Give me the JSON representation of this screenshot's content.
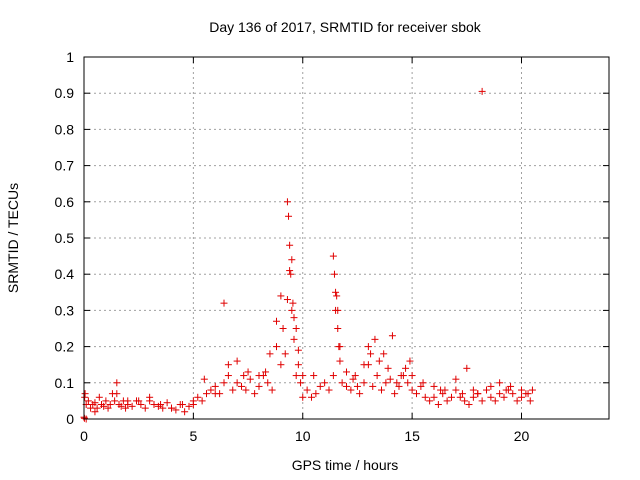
{
  "chart_data": {
    "type": "scatter",
    "title": "Day 136 of 2017, SRMTID for receiver sbok",
    "xlabel": "GPS time / hours",
    "ylabel": "SRMTID / TECUs",
    "xlim": [
      0,
      24
    ],
    "ylim": [
      0,
      1
    ],
    "xticks": [
      0,
      5,
      10,
      15,
      20
    ],
    "yticks": [
      0,
      0.1,
      0.2,
      0.3,
      0.4,
      0.5,
      0.6,
      0.7,
      0.8,
      0.9,
      1
    ],
    "xtick_labels": [
      "0",
      "5",
      "10",
      "15",
      "20"
    ],
    "ytick_labels": [
      "0",
      "0.1",
      "0.2",
      "0.3",
      "0.4",
      "0.5",
      "0.6",
      "0.7",
      "0.8",
      "0.9",
      "1"
    ],
    "grid": true,
    "marker": "plus",
    "color": "#e00000",
    "series": [
      {
        "x": [
          0.0,
          0.05,
          0.1,
          0.2,
          0.3,
          0.4,
          0.5,
          0.6,
          0.7,
          0.8,
          0.9,
          1.0,
          1.1,
          1.2,
          1.3,
          1.4,
          1.5,
          1.6,
          1.7,
          1.8,
          1.9,
          2.0,
          2.2,
          2.4,
          2.6,
          2.8,
          3.0,
          3.2,
          3.4,
          3.6,
          3.8,
          4.0,
          4.2,
          4.4,
          4.6,
          4.8,
          5.0,
          5.2,
          5.4,
          5.6,
          5.8,
          6.0,
          6.2,
          6.4,
          6.6,
          6.8,
          7.0,
          7.2,
          7.4,
          7.6,
          7.8,
          8.0,
          8.2,
          8.4,
          8.6,
          8.8,
          9.0,
          9.1,
          9.2,
          9.3,
          9.4,
          9.5,
          9.6,
          9.7,
          9.8,
          9.9,
          10.0,
          10.2,
          10.4,
          10.6,
          10.8,
          11.0,
          11.2,
          11.4,
          11.5,
          11.6,
          11.7,
          11.8,
          12.0,
          12.2,
          12.4,
          12.6,
          12.8,
          13.0,
          13.2,
          13.4,
          13.6,
          13.8,
          14.0,
          14.2,
          14.4,
          14.6,
          14.8,
          15.0,
          15.2,
          15.4,
          15.6,
          15.8,
          16.0,
          16.2,
          16.4,
          16.6,
          16.8,
          17.0,
          17.2,
          17.4,
          17.6,
          17.8,
          18.0,
          18.2,
          18.4,
          18.6,
          18.8,
          19.0,
          19.2,
          19.4,
          19.6,
          19.8,
          20.0,
          20.2,
          20.4,
          20.5,
          0.1,
          0.5,
          1.5,
          2.0,
          3.0,
          4.0,
          4.5,
          5.0,
          6.0,
          6.4,
          6.6,
          7.0,
          7.5,
          8.0,
          8.5,
          8.8,
          9.0,
          9.3,
          9.35,
          9.4,
          9.45,
          9.5,
          9.55,
          9.6,
          9.7,
          9.8,
          10.0,
          11.4,
          11.45,
          11.5,
          11.55,
          11.6,
          11.65,
          11.7,
          12.0,
          12.5,
          12.8,
          13.0,
          13.1,
          13.3,
          13.5,
          13.7,
          13.9,
          14.1,
          14.5,
          14.7,
          14.9,
          15.0,
          15.5,
          16.0,
          16.5,
          17.0,
          17.5,
          17.8,
          18.0,
          18.2,
          18.6,
          19.0,
          19.5,
          20.0,
          20.3,
          0.02,
          0.03,
          2.5,
          3.5,
          5.5,
          7.3,
          8.3,
          10.5,
          12.3,
          14.3,
          16.3,
          17.3,
          19.3
        ],
        "y": [
          0.005,
          0.07,
          0.04,
          0.05,
          0.03,
          0.04,
          0.045,
          0.03,
          0.06,
          0.04,
          0.035,
          0.05,
          0.03,
          0.04,
          0.07,
          0.05,
          0.1,
          0.04,
          0.035,
          0.05,
          0.03,
          0.04,
          0.035,
          0.05,
          0.04,
          0.03,
          0.05,
          0.04,
          0.035,
          0.03,
          0.045,
          0.03,
          0.025,
          0.04,
          0.02,
          0.035,
          0.04,
          0.06,
          0.05,
          0.07,
          0.08,
          0.09,
          0.07,
          0.1,
          0.12,
          0.08,
          0.1,
          0.09,
          0.08,
          0.11,
          0.07,
          0.09,
          0.12,
          0.1,
          0.08,
          0.2,
          0.15,
          0.25,
          0.18,
          0.33,
          0.41,
          0.3,
          0.22,
          0.12,
          0.15,
          0.1,
          0.06,
          0.08,
          0.06,
          0.07,
          0.09,
          0.1,
          0.08,
          0.12,
          0.35,
          0.3,
          0.2,
          0.1,
          0.09,
          0.08,
          0.12,
          0.07,
          0.1,
          0.15,
          0.09,
          0.12,
          0.08,
          0.1,
          0.11,
          0.07,
          0.09,
          0.12,
          0.1,
          0.08,
          0.07,
          0.09,
          0.06,
          0.05,
          0.06,
          0.04,
          0.07,
          0.05,
          0.06,
          0.08,
          0.06,
          0.05,
          0.04,
          0.06,
          0.07,
          0.05,
          0.08,
          0.06,
          0.05,
          0.07,
          0.06,
          0.08,
          0.07,
          0.05,
          0.06,
          0.07,
          0.05,
          0.08,
          0.0,
          0.02,
          0.07,
          0.05,
          0.06,
          0.03,
          0.04,
          0.05,
          0.07,
          0.32,
          0.15,
          0.16,
          0.13,
          0.12,
          0.18,
          0.27,
          0.34,
          0.6,
          0.56,
          0.48,
          0.4,
          0.44,
          0.32,
          0.28,
          0.25,
          0.19,
          0.12,
          0.45,
          0.4,
          0.3,
          0.34,
          0.25,
          0.2,
          0.16,
          0.13,
          0.09,
          0.15,
          0.2,
          0.18,
          0.22,
          0.16,
          0.18,
          0.14,
          0.23,
          0.12,
          0.14,
          0.16,
          0.12,
          0.1,
          0.09,
          0.08,
          0.11,
          0.14,
          0.08,
          0.07,
          0.905,
          0.09,
          0.1,
          0.09,
          0.08,
          0.07,
          0.002,
          0.06,
          0.05,
          0.04,
          0.11,
          0.12,
          0.13,
          0.12,
          0.11,
          0.1,
          0.08,
          0.07,
          0.08
        ]
      }
    ]
  }
}
